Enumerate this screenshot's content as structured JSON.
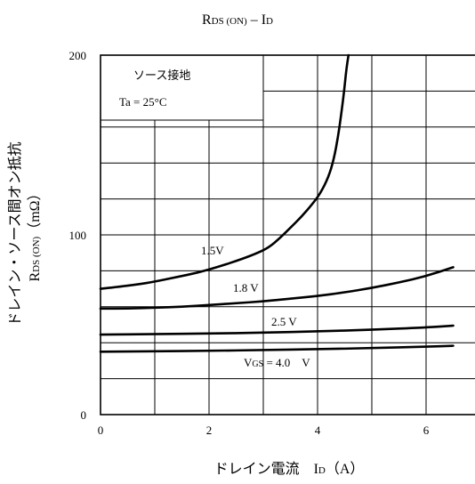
{
  "chart_data": {
    "type": "line",
    "title_main": "R",
    "title_main_sub": "DS (ON)",
    "title_sep": " – I",
    "title_sep_sub": "D",
    "xlabel_text": "ドレイン電流　I",
    "xlabel_sub": "D",
    "xlabel_unit": "（A）",
    "ylabel_text": "ドレイン・ソース間オン抵抗",
    "ylabel_line2_main": "R",
    "ylabel_line2_sub": "DS (ON)",
    "ylabel_line2_unit": "（mΩ）",
    "xlim": [
      0,
      7
    ],
    "ylim": [
      0,
      200
    ],
    "x_ticks": [
      0,
      2,
      4,
      6
    ],
    "x_tick_labels": [
      "0",
      "2",
      "4",
      "6"
    ],
    "y_ticks": [
      0,
      100,
      200
    ],
    "y_tick_labels": [
      "0",
      "100",
      "200"
    ],
    "grid": true,
    "legend_box": {
      "line1": "ソース接地",
      "line2": "Ta = 25°C",
      "position": "top-left"
    },
    "series": [
      {
        "label": "1.5V",
        "x": [
          0,
          0.3,
          0.7,
          1.0,
          1.4,
          1.8,
          2.2,
          2.6,
          2.9,
          3.1,
          3.3,
          3.5,
          3.7,
          3.9,
          4.05,
          4.2,
          4.3,
          4.38,
          4.44,
          4.49,
          4.53,
          4.57
        ],
        "y": [
          70,
          71,
          72.5,
          74,
          76.5,
          79,
          82.5,
          86.5,
          90,
          93,
          98,
          104,
          110,
          117,
          123,
          132,
          142,
          155,
          168,
          180,
          192,
          200
        ]
      },
      {
        "label": "1.8 V",
        "x": [
          0,
          0.5,
          1,
          1.5,
          2,
          2.5,
          3,
          3.5,
          4,
          4.5,
          5,
          5.5,
          6,
          6.5
        ],
        "y": [
          59,
          59,
          59.5,
          60,
          61,
          62,
          63,
          64.5,
          66,
          68,
          70.5,
          73.5,
          77,
          82
        ]
      },
      {
        "label": "2.5 V",
        "x": [
          0,
          1,
          2,
          3,
          4,
          5,
          6,
          6.5
        ],
        "y": [
          44.5,
          44.8,
          45.1,
          45.6,
          46.3,
          47.2,
          48.5,
          49.5
        ]
      },
      {
        "label": "4.0 V",
        "label_prefix": "V",
        "label_prefix_sub": "GS",
        "label_eq": " = 4.0　V",
        "x": [
          0,
          1,
          2,
          3,
          4,
          5,
          6,
          6.5
        ],
        "y": [
          35,
          35.2,
          35.5,
          35.9,
          36.4,
          37,
          37.8,
          38.3
        ]
      }
    ]
  }
}
